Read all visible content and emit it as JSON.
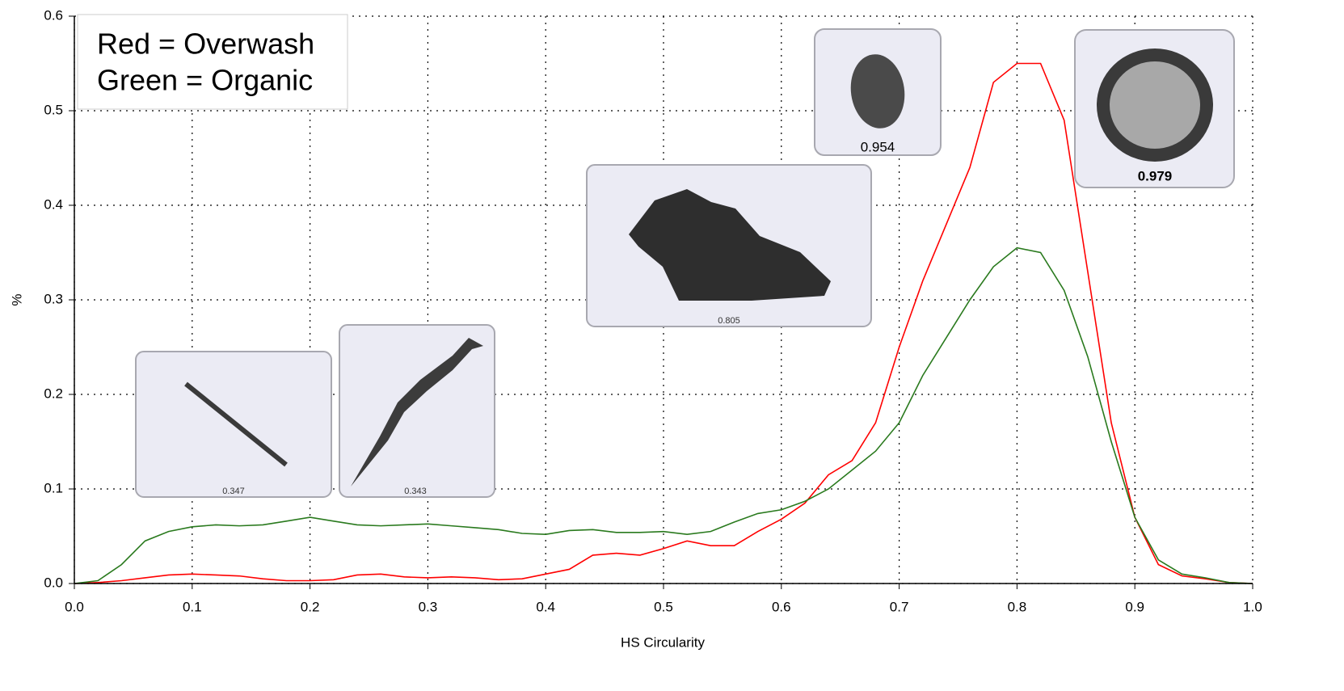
{
  "chart_data": {
    "type": "line",
    "x_label": "HS Circularity",
    "y_label": "%",
    "x": [
      0,
      0.02,
      0.04,
      0.06,
      0.08,
      0.1,
      0.12,
      0.14,
      0.16,
      0.18,
      0.2,
      0.22,
      0.24,
      0.26,
      0.28,
      0.3,
      0.32,
      0.34,
      0.36,
      0.38,
      0.4,
      0.42,
      0.44,
      0.46,
      0.48,
      0.5,
      0.52,
      0.54,
      0.56,
      0.58,
      0.6,
      0.62,
      0.64,
      0.66,
      0.68,
      0.7,
      0.72,
      0.74,
      0.76,
      0.78,
      0.8,
      0.82,
      0.84,
      0.86,
      0.88,
      0.9,
      0.92,
      0.94,
      0.96,
      0.98,
      1.0
    ],
    "series": [
      {
        "name": "Red = Overwash",
        "color": "#ff0000",
        "values": [
          0,
          0.001,
          0.003,
          0.006,
          0.009,
          0.01,
          0.009,
          0.008,
          0.005,
          0.003,
          0.003,
          0.004,
          0.009,
          0.01,
          0.007,
          0.006,
          0.007,
          0.006,
          0.004,
          0.005,
          0.01,
          0.015,
          0.03,
          0.032,
          0.03,
          0.037,
          0.045,
          0.04,
          0.04,
          0.055,
          0.068,
          0.085,
          0.115,
          0.13,
          0.17,
          0.25,
          0.32,
          0.38,
          0.44,
          0.53,
          0.55,
          0.55,
          0.49,
          0.33,
          0.17,
          0.07,
          0.02,
          0.008,
          0.005,
          0.001,
          0
        ]
      },
      {
        "name": "Green = Organic",
        "color": "#2a7a1e",
        "values": [
          0,
          0.003,
          0.02,
          0.045,
          0.055,
          0.06,
          0.062,
          0.061,
          0.062,
          0.066,
          0.07,
          0.066,
          0.062,
          0.061,
          0.062,
          0.063,
          0.061,
          0.059,
          0.057,
          0.053,
          0.052,
          0.056,
          0.057,
          0.054,
          0.054,
          0.055,
          0.052,
          0.055,
          0.065,
          0.074,
          0.078,
          0.087,
          0.1,
          0.12,
          0.14,
          0.17,
          0.22,
          0.26,
          0.3,
          0.335,
          0.355,
          0.35,
          0.31,
          0.24,
          0.15,
          0.07,
          0.025,
          0.01,
          0.006,
          0.001,
          0
        ]
      }
    ],
    "xlim": [
      0,
      1.0
    ],
    "xticks": [
      {
        "value": 0,
        "label": "0.0"
      },
      0.1,
      0.2,
      0.3,
      0.4,
      0.5,
      0.6,
      0.7,
      0.8,
      0.9,
      {
        "value": 1.0,
        "label": "1.0"
      }
    ],
    "ylim": [
      0,
      0.6
    ],
    "yticks": [
      {
        "value": 0,
        "label": "0.0"
      },
      0.1,
      0.2,
      0.3,
      0.4,
      0.5,
      0.6
    ],
    "grid": true,
    "image_labels": [
      "0.347",
      "0.343",
      "0.805",
      "0.954",
      "0.979"
    ]
  }
}
